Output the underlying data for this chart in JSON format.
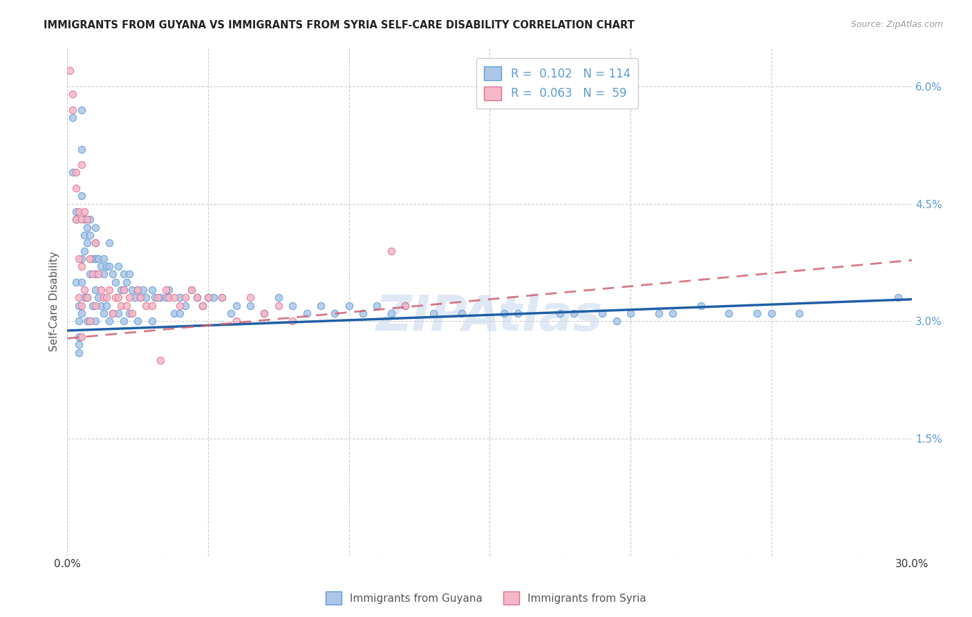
{
  "title": "IMMIGRANTS FROM GUYANA VS IMMIGRANTS FROM SYRIA SELF-CARE DISABILITY CORRELATION CHART",
  "source": "Source: ZipAtlas.com",
  "ylabel": "Self-Care Disability",
  "x_min": 0.0,
  "x_max": 0.3,
  "y_min": 0.0,
  "y_max": 0.065,
  "x_ticks": [
    0.0,
    0.05,
    0.1,
    0.15,
    0.2,
    0.25,
    0.3
  ],
  "y_ticks_right": [
    0.0,
    0.015,
    0.03,
    0.045,
    0.06
  ],
  "y_tick_labels_right": [
    "",
    "1.5%",
    "3.0%",
    "4.5%",
    "6.0%"
  ],
  "guyana_color": "#adc6e8",
  "guyana_edge_color": "#5b9bd5",
  "syria_color": "#f4b8c8",
  "syria_edge_color": "#e07090",
  "guyana_line_color": "#1f5fa6",
  "syria_line_color": "#d06070",
  "legend_R_guyana": "0.102",
  "legend_N_guyana": "114",
  "legend_R_syria": "0.063",
  "legend_N_syria": "59",
  "watermark": "ZIPAtlas",
  "guyana_trend_x0": 0.0,
  "guyana_trend_y0": 0.0288,
  "guyana_trend_x1": 0.3,
  "guyana_trend_y1": 0.0328,
  "syria_trend_x0": 0.0,
  "syria_trend_y0": 0.0278,
  "syria_trend_x1": 0.3,
  "syria_trend_y1": 0.0378,
  "guyana_x": [
    0.002,
    0.002,
    0.003,
    0.003,
    0.003,
    0.004,
    0.004,
    0.004,
    0.004,
    0.004,
    0.005,
    0.005,
    0.005,
    0.005,
    0.005,
    0.005,
    0.006,
    0.006,
    0.006,
    0.006,
    0.007,
    0.007,
    0.007,
    0.007,
    0.008,
    0.008,
    0.008,
    0.008,
    0.009,
    0.009,
    0.01,
    0.01,
    0.01,
    0.01,
    0.01,
    0.01,
    0.011,
    0.011,
    0.012,
    0.012,
    0.013,
    0.013,
    0.013,
    0.014,
    0.014,
    0.015,
    0.015,
    0.015,
    0.016,
    0.016,
    0.017,
    0.018,
    0.018,
    0.019,
    0.02,
    0.02,
    0.02,
    0.021,
    0.022,
    0.022,
    0.023,
    0.024,
    0.025,
    0.025,
    0.026,
    0.027,
    0.028,
    0.03,
    0.03,
    0.031,
    0.033,
    0.035,
    0.036,
    0.038,
    0.04,
    0.04,
    0.042,
    0.044,
    0.046,
    0.048,
    0.05,
    0.052,
    0.055,
    0.058,
    0.06,
    0.065,
    0.07,
    0.075,
    0.08,
    0.085,
    0.09,
    0.095,
    0.1,
    0.105,
    0.11,
    0.115,
    0.12,
    0.13,
    0.14,
    0.155,
    0.16,
    0.175,
    0.18,
    0.19,
    0.195,
    0.2,
    0.21,
    0.215,
    0.225,
    0.235,
    0.245,
    0.25,
    0.26,
    0.295
  ],
  "guyana_y": [
    0.056,
    0.049,
    0.044,
    0.043,
    0.035,
    0.032,
    0.03,
    0.028,
    0.027,
    0.026,
    0.057,
    0.052,
    0.046,
    0.038,
    0.035,
    0.031,
    0.043,
    0.041,
    0.039,
    0.033,
    0.042,
    0.04,
    0.033,
    0.03,
    0.043,
    0.041,
    0.036,
    0.03,
    0.038,
    0.032,
    0.042,
    0.04,
    0.038,
    0.036,
    0.034,
    0.03,
    0.038,
    0.033,
    0.037,
    0.032,
    0.038,
    0.036,
    0.031,
    0.037,
    0.032,
    0.04,
    0.037,
    0.03,
    0.036,
    0.031,
    0.035,
    0.037,
    0.031,
    0.034,
    0.036,
    0.034,
    0.03,
    0.035,
    0.036,
    0.031,
    0.034,
    0.033,
    0.034,
    0.03,
    0.033,
    0.034,
    0.033,
    0.034,
    0.03,
    0.033,
    0.033,
    0.033,
    0.034,
    0.031,
    0.033,
    0.031,
    0.032,
    0.034,
    0.033,
    0.032,
    0.033,
    0.033,
    0.033,
    0.031,
    0.032,
    0.032,
    0.031,
    0.033,
    0.032,
    0.031,
    0.032,
    0.031,
    0.032,
    0.031,
    0.032,
    0.031,
    0.032,
    0.031,
    0.031,
    0.031,
    0.031,
    0.031,
    0.031,
    0.031,
    0.03,
    0.031,
    0.031,
    0.031,
    0.032,
    0.031,
    0.031,
    0.031,
    0.031,
    0.033
  ],
  "syria_x": [
    0.001,
    0.002,
    0.002,
    0.003,
    0.003,
    0.003,
    0.004,
    0.004,
    0.004,
    0.005,
    0.005,
    0.005,
    0.005,
    0.005,
    0.006,
    0.006,
    0.007,
    0.007,
    0.008,
    0.008,
    0.009,
    0.01,
    0.01,
    0.011,
    0.012,
    0.013,
    0.014,
    0.015,
    0.016,
    0.017,
    0.018,
    0.019,
    0.02,
    0.021,
    0.022,
    0.023,
    0.025,
    0.026,
    0.028,
    0.03,
    0.032,
    0.033,
    0.035,
    0.036,
    0.038,
    0.04,
    0.042,
    0.044,
    0.046,
    0.048,
    0.05,
    0.055,
    0.06,
    0.065,
    0.07,
    0.075,
    0.08,
    0.115,
    0.12
  ],
  "syria_y": [
    0.062,
    0.059,
    0.057,
    0.049,
    0.047,
    0.043,
    0.044,
    0.038,
    0.033,
    0.05,
    0.043,
    0.037,
    0.032,
    0.028,
    0.044,
    0.034,
    0.043,
    0.033,
    0.038,
    0.03,
    0.036,
    0.04,
    0.032,
    0.036,
    0.034,
    0.033,
    0.033,
    0.034,
    0.031,
    0.033,
    0.033,
    0.032,
    0.034,
    0.032,
    0.033,
    0.031,
    0.034,
    0.033,
    0.032,
    0.032,
    0.033,
    0.025,
    0.034,
    0.033,
    0.033,
    0.032,
    0.033,
    0.034,
    0.033,
    0.032,
    0.033,
    0.033,
    0.03,
    0.033,
    0.031,
    0.032,
    0.03,
    0.039,
    0.032
  ]
}
